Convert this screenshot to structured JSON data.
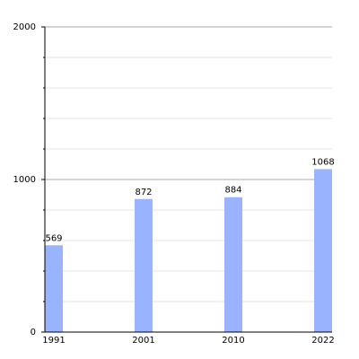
{
  "chart_data": {
    "type": "bar",
    "categories": [
      "1991",
      "2001",
      "2010",
      "2022"
    ],
    "values": [
      569,
      872,
      884,
      1068
    ],
    "color": "#99b3ff",
    "ylim": [
      0,
      2000
    ],
    "yticks": [
      0,
      1000,
      2000
    ],
    "minor_yticks": [
      200,
      400,
      600,
      800,
      1200,
      1400,
      1600,
      1800
    ],
    "grid": true
  }
}
